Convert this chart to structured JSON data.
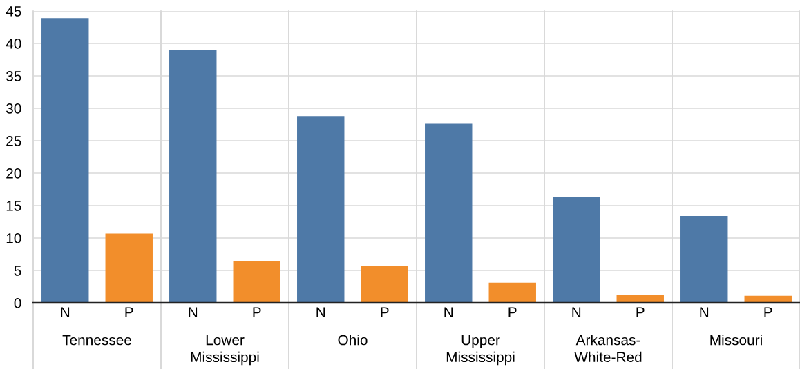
{
  "chart_data": {
    "type": "bar",
    "categories": [
      "Tennessee",
      "Lower\nMississippi",
      "Ohio",
      "Upper\nMississippi",
      "Arkansas-\nWhite-Red",
      "Missouri"
    ],
    "series": [
      {
        "name": "N",
        "color": "#4e79a7",
        "values": [
          43.9,
          39.0,
          28.8,
          27.6,
          16.3,
          13.4
        ]
      },
      {
        "name": "P",
        "color": "#f28e2b",
        "values": [
          10.7,
          6.5,
          5.7,
          3.1,
          1.2,
          1.1
        ]
      }
    ],
    "ylim": [
      0,
      45
    ],
    "yticks": [
      0,
      5,
      10,
      15,
      20,
      25,
      30,
      35,
      40,
      45
    ],
    "grid": "y",
    "legend": false
  }
}
